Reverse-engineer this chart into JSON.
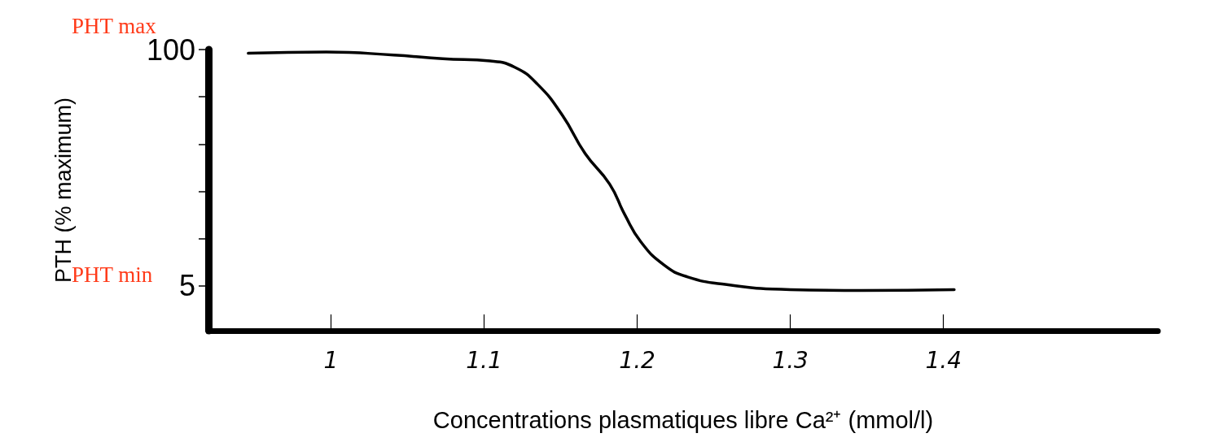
{
  "chart_data": {
    "type": "line",
    "xlabel": "Concentrations plasmatiques libre Ca²⁺ (mmol/l)",
    "ylabel": "PTH (% maximum)",
    "x": [
      0.946,
      0.997,
      1.041,
      1.073,
      1.104,
      1.12,
      1.135,
      1.151,
      1.166,
      1.182,
      1.192,
      1.2025,
      1.2175,
      1.2325,
      1.2575,
      1.3,
      1.346,
      1.407
    ],
    "series": [
      {
        "color": "#000000",
        "values": [
          98.5,
          99,
          97.8,
          96.3,
          95.4,
          92.9,
          86,
          73.7,
          58.2,
          45.9,
          33.5,
          22.6,
          13.4,
          8.7,
          5.6,
          3.5,
          3.2,
          3.5
        ]
      }
    ],
    "xlim": [
      0.92,
      1.54
    ],
    "xticks": [
      1,
      1.1,
      1.2,
      1.3,
      1.4
    ],
    "ylim": [
      -13,
      100
    ],
    "yticks": [
      100,
      {
        "value": 81,
        "label": null
      },
      {
        "value": 62,
        "label": null
      },
      {
        "value": 43,
        "label": null
      },
      {
        "value": 24,
        "label": null
      },
      5
    ],
    "annotations": [
      "PHT max",
      "PHT min"
    ],
    "grid": false,
    "marker": "none",
    "line_style": "solid"
  }
}
